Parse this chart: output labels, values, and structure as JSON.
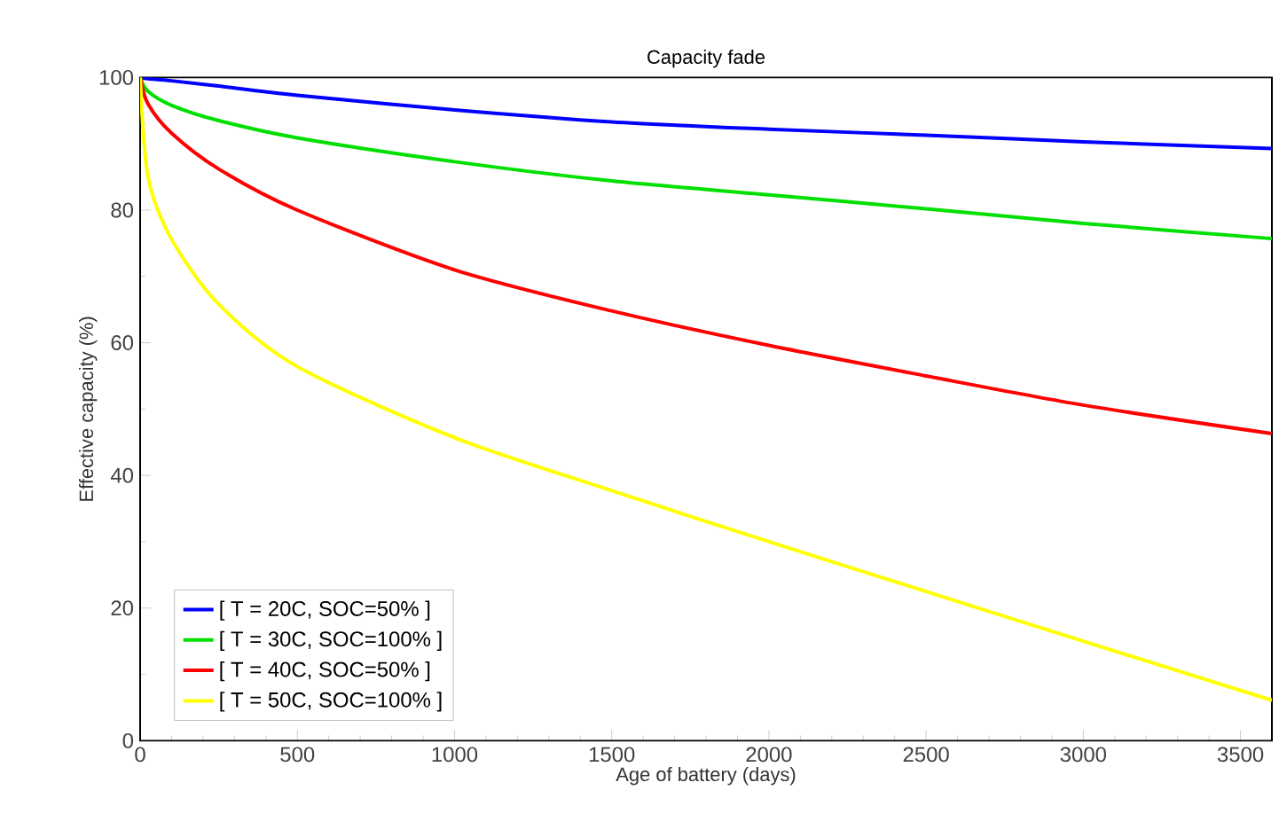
{
  "chart_data": {
    "type": "line",
    "title": "Capacity fade",
    "xlabel": "Age of battery (days)",
    "ylabel": "Effective capacity (%)",
    "xlim": [
      0,
      3600
    ],
    "ylim": [
      0,
      100
    ],
    "xticks": [
      0,
      500,
      1000,
      1500,
      2000,
      2500,
      3000,
      3500
    ],
    "yticks": [
      0,
      20,
      40,
      60,
      80,
      100
    ],
    "grid": false,
    "legend": "bottom left",
    "marker": "none",
    "line_style": "solid",
    "x": [
      0,
      25,
      100,
      250,
      500,
      1000,
      1500,
      2000,
      2500,
      3000,
      3600
    ],
    "series": [
      {
        "name": "[ T = 20C, SOC=50% ]",
        "color": "#0000ff",
        "values": [
          100,
          99.8,
          99.5,
          98.7,
          97.3,
          95.1,
          93.3,
          92.2,
          91.3,
          90.3,
          89.3
        ]
      },
      {
        "name": "[ T = 30C, SOC=100% ]",
        "color": "#00e000",
        "values": [
          100,
          97.9,
          95.8,
          93.5,
          90.9,
          87.3,
          84.4,
          82.3,
          80.2,
          78.0,
          75.7
        ]
      },
      {
        "name": "[ T = 40C, SOC=50% ]",
        "color": "#ff0000",
        "values": [
          100,
          96,
          91.6,
          86.2,
          80.0,
          71.0,
          64.8,
          59.6,
          55.0,
          50.6,
          46.3
        ]
      },
      {
        "name": "[ T = 50C, SOC=100% ]",
        "color": "#ffff00",
        "values": [
          100,
          85,
          75.6,
          65.8,
          56.4,
          45.7,
          37.7,
          30.0,
          22.5,
          15.0,
          6.1
        ]
      }
    ]
  }
}
